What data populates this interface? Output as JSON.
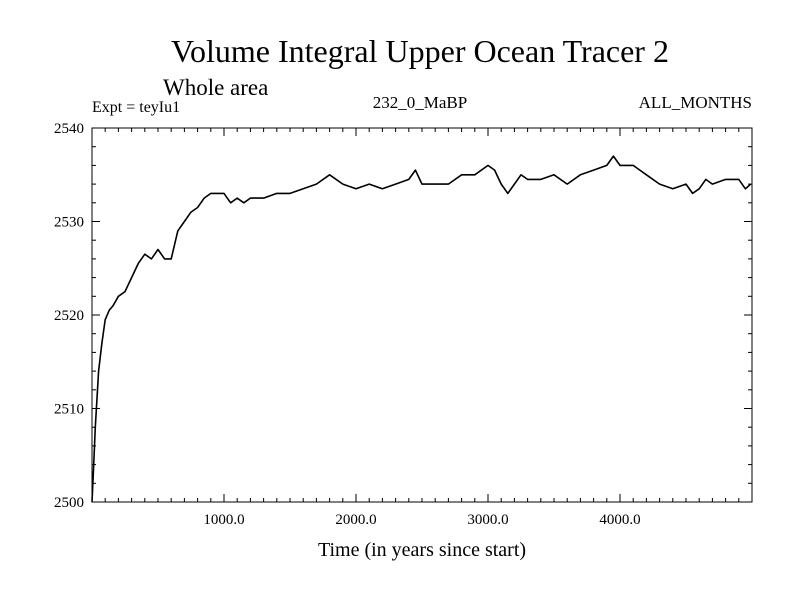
{
  "chart_data": {
    "type": "line",
    "title": "Volume Integral Upper Ocean Tracer 2",
    "subtitle": "Whole area",
    "header_left": "Expt = teyIu1",
    "header_center": "232_0_MaBP",
    "header_right": "ALL_MONTHS",
    "xlabel": "Time (in years since start)",
    "ylabel": "",
    "xlim": [
      0,
      5000
    ],
    "ylim": [
      2500,
      2540
    ],
    "x_ticks": [
      1000,
      2000,
      3000,
      4000
    ],
    "x_tick_labels": [
      "1000.0",
      "2000.0",
      "3000.0",
      "4000.0"
    ],
    "y_ticks": [
      2500,
      2510,
      2520,
      2530,
      2540
    ],
    "y_tick_labels": [
      "2500",
      "2510",
      "2520",
      "2530",
      "2540"
    ],
    "grid": false,
    "series": [
      {
        "name": "Upper Ocean Tracer 2",
        "color": "#000000",
        "x": [
          0,
          10,
          25,
          50,
          75,
          100,
          130,
          160,
          200,
          250,
          300,
          350,
          400,
          450,
          500,
          550,
          600,
          650,
          700,
          750,
          800,
          850,
          900,
          950,
          1000,
          1050,
          1100,
          1150,
          1200,
          1300,
          1400,
          1500,
          1600,
          1700,
          1800,
          1900,
          2000,
          2100,
          2200,
          2300,
          2400,
          2450,
          2500,
          2600,
          2700,
          2800,
          2900,
          3000,
          3050,
          3100,
          3150,
          3200,
          3250,
          3300,
          3400,
          3500,
          3600,
          3700,
          3800,
          3900,
          3950,
          4000,
          4100,
          4200,
          4300,
          4400,
          4500,
          4550,
          4600,
          4650,
          4700,
          4800,
          4900,
          4950,
          4990
        ],
        "values": [
          2500,
          2503,
          2508,
          2514,
          2517,
          2519.5,
          2520.5,
          2521,
          2522,
          2522.5,
          2524,
          2525.5,
          2526.5,
          2526,
          2527,
          2526,
          2526,
          2529,
          2530,
          2531,
          2531.5,
          2532.5,
          2533,
          2533,
          2533,
          2532,
          2532.5,
          2532,
          2532.5,
          2532.5,
          2533,
          2533,
          2533.5,
          2534,
          2535,
          2534,
          2533.5,
          2534,
          2533.5,
          2534,
          2534.5,
          2535.5,
          2534,
          2534,
          2534,
          2535,
          2535,
          2536,
          2535.5,
          2534,
          2533,
          2534,
          2535,
          2534.5,
          2534.5,
          2535,
          2534,
          2535,
          2535.5,
          2536,
          2537,
          2536,
          2536,
          2535,
          2534,
          2533.5,
          2534,
          2533,
          2533.5,
          2534.5,
          2534,
          2534.5,
          2534.5,
          2533.5,
          2534
        ]
      }
    ]
  }
}
